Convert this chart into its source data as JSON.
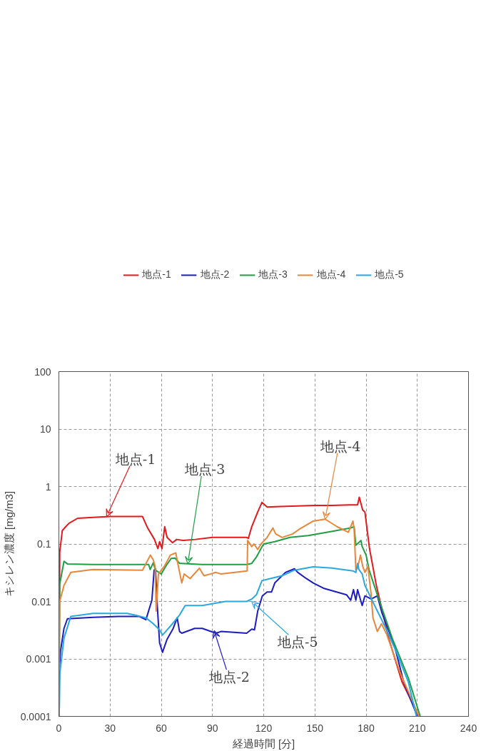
{
  "chart_data": {
    "type": "line",
    "xlabel": "経過時間 [分]",
    "ylabel": "キシレン濃度 [mg/m3]",
    "xlim": [
      0,
      240
    ],
    "xticks": [
      0,
      30,
      60,
      90,
      120,
      150,
      180,
      210,
      240
    ],
    "ylim": [
      0.0001,
      100
    ],
    "yticks": [
      0.0001,
      0.001,
      0.01,
      0.1,
      1,
      10,
      100
    ],
    "log": "y",
    "grid": true,
    "legend": "top",
    "marker": "none",
    "line_style": "solid",
    "series": [
      {
        "name": "地点-1",
        "color": "#e3191c",
        "x": [
          0,
          0.5,
          2,
          4,
          6,
          11,
          20,
          30,
          40,
          49,
          52,
          56,
          58,
          59,
          60.4,
          62,
          63.4,
          66.6,
          69,
          73,
          80,
          90,
          100,
          110,
          111,
          113,
          116.5,
          119,
          122,
          130,
          140,
          150,
          160,
          170,
          175,
          176,
          178,
          179.3,
          182,
          186,
          193.4,
          201,
          211
        ],
        "values": [
          0.0001,
          0.072,
          0.17,
          0.2,
          0.23,
          0.28,
          0.29,
          0.3,
          0.3,
          0.3,
          0.19,
          0.12,
          0.083,
          0.11,
          0.083,
          0.2,
          0.13,
          0.105,
          0.12,
          0.115,
          0.12,
          0.13,
          0.13,
          0.13,
          0.125,
          0.2,
          0.36,
          0.53,
          0.44,
          0.45,
          0.46,
          0.47,
          0.47,
          0.48,
          0.48,
          0.65,
          0.39,
          0.36,
          0.083,
          0.019,
          0.0022,
          0.0004,
          0.0001
        ]
      },
      {
        "name": "地点-2",
        "color": "#1c1cc0",
        "x": [
          0,
          0.2,
          1,
          3,
          5,
          20,
          35,
          47,
          51,
          54.5,
          55.8,
          56.6,
          57.7,
          59,
          60.7,
          63.4,
          67,
          69.3,
          70.7,
          72,
          79.6,
          84,
          92,
          95,
          110,
          113,
          114.6,
          116.5,
          119.2,
          122,
          124.6,
          126.5,
          132.7,
          138,
          140,
          145,
          149,
          155,
          168.6,
          171,
          172.6,
          174,
          175,
          177.7,
          179.3,
          183,
          186.6,
          189.3,
          196.6,
          202,
          210
        ],
        "values": [
          0.0001,
          0.0006,
          0.0014,
          0.0034,
          0.005,
          0.0053,
          0.0055,
          0.0055,
          0.0048,
          0.0105,
          0.035,
          0.037,
          0.0081,
          0.0019,
          0.0013,
          0.0022,
          0.0034,
          0.0052,
          0.003,
          0.0028,
          0.0034,
          0.0034,
          0.0028,
          0.003,
          0.0028,
          0.0033,
          0.0032,
          0.0068,
          0.0125,
          0.0146,
          0.0146,
          0.021,
          0.032,
          0.037,
          0.032,
          0.025,
          0.021,
          0.017,
          0.013,
          0.0105,
          0.016,
          0.0105,
          0.016,
          0.0085,
          0.0125,
          0.011,
          0.0125,
          0.0063,
          0.0017,
          0.0004,
          0.0001
        ]
      },
      {
        "name": "地点-3",
        "color": "#1f9e45",
        "x": [
          0,
          0.5,
          3,
          5,
          20,
          50,
          52.6,
          53.5,
          55.3,
          56.6,
          60,
          62.6,
          65.8,
          68,
          70.7,
          84,
          110,
          113,
          115.7,
          118.4,
          120,
          126.5,
          135.4,
          146,
          159.7,
          171,
          173,
          174,
          177,
          177.7,
          180,
          181.8,
          186.6,
          195.5,
          204.7,
          211.7
        ],
        "values": [
          0.0001,
          0.02,
          0.05,
          0.045,
          0.044,
          0.044,
          0.044,
          0.036,
          0.047,
          0.035,
          0.03,
          0.041,
          0.056,
          0.057,
          0.046,
          0.044,
          0.044,
          0.046,
          0.059,
          0.083,
          0.1,
          0.11,
          0.13,
          0.14,
          0.165,
          0.19,
          0.2,
          0.095,
          0.115,
          0.09,
          0.064,
          0.035,
          0.013,
          0.0022,
          0.00047,
          0.0001
        ]
      },
      {
        "name": "地点-4",
        "color": "#e8873a",
        "x": [
          0,
          0.5,
          3,
          7,
          20,
          49,
          53.6,
          55.3,
          56.4,
          57,
          58.3,
          61.8,
          65.3,
          68.5,
          70,
          72,
          73.4,
          76.9,
          82.3,
          85,
          88.7,
          92,
          95,
          110.3,
          110.6,
          113,
          114.3,
          116.5,
          118.4,
          122,
          125.4,
          127,
          130.8,
          137,
          140.8,
          149,
          156,
          163,
          169.6,
          172.3,
          173,
          174,
          175,
          176.7,
          178,
          179.3,
          181,
          183,
          184,
          186.6,
          189,
          192,
          200,
          211
        ],
        "values": [
          0.0001,
          0.01,
          0.019,
          0.032,
          0.036,
          0.035,
          0.064,
          0.053,
          0.041,
          0.0068,
          0.03,
          0.041,
          0.064,
          0.07,
          0.041,
          0.021,
          0.03,
          0.025,
          0.038,
          0.028,
          0.03,
          0.032,
          0.03,
          0.034,
          0.115,
          0.09,
          0.1,
          0.08,
          0.1,
          0.13,
          0.19,
          0.15,
          0.13,
          0.15,
          0.18,
          0.25,
          0.27,
          0.2,
          0.16,
          0.25,
          0.18,
          0.035,
          0.038,
          0.064,
          0.041,
          0.032,
          0.041,
          0.013,
          0.0052,
          0.003,
          0.0041,
          0.0027,
          0.00057,
          0.0001
        ]
      },
      {
        "name": "地点-5",
        "color": "#2aa9e0",
        "x": [
          0,
          0.3,
          0.6,
          3,
          7,
          20,
          40,
          44.5,
          51,
          55.3,
          59,
          60.7,
          65.3,
          70.7,
          74,
          84,
          97.6,
          110,
          113,
          115.7,
          119,
          123.8,
          130.8,
          138,
          149,
          160,
          172.3,
          174,
          175,
          175.8,
          177.7,
          179.3,
          182,
          186.6,
          191,
          197.4,
          204.7,
          209.5
        ],
        "values": [
          0.0001,
          0.00015,
          0.00057,
          0.0023,
          0.0055,
          0.0062,
          0.0062,
          0.0058,
          0.0052,
          0.0041,
          0.0032,
          0.0026,
          0.0037,
          0.0058,
          0.0085,
          0.0085,
          0.01,
          0.01,
          0.011,
          0.013,
          0.023,
          0.025,
          0.028,
          0.035,
          0.04,
          0.038,
          0.034,
          0.032,
          0.046,
          0.036,
          0.03,
          0.019,
          0.013,
          0.0068,
          0.0037,
          0.0014,
          0.0004,
          0.0001
        ]
      }
    ],
    "annotations": [
      {
        "text": "地点-1",
        "x": 28,
        "y": 0.3
      },
      {
        "text": "地点-2",
        "x": 91,
        "y": 0.0031
      },
      {
        "text": "地点-3",
        "x": 75.5,
        "y": 0.045
      },
      {
        "text": "地点-4",
        "x": 156,
        "y": 0.27
      },
      {
        "text": "地点-5",
        "x": 113,
        "y": 0.01
      }
    ]
  }
}
